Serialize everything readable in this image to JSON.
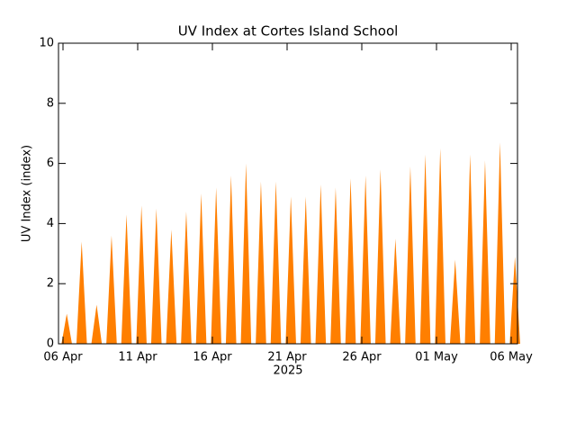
{
  "chart_data": {
    "type": "spike",
    "title": "UV Index at Cortes Island School",
    "y_label": "UV Index (index)",
    "x_label": "2025",
    "color": "#ff7f00",
    "x": [
      "2025-04-06",
      "2025-04-07",
      "2025-04-08",
      "2025-04-09",
      "2025-04-10",
      "2025-04-11",
      "2025-04-12",
      "2025-04-13",
      "2025-04-14",
      "2025-04-15",
      "2025-04-16",
      "2025-04-17",
      "2025-04-18",
      "2025-04-19",
      "2025-04-20",
      "2025-04-21",
      "2025-04-22",
      "2025-04-23",
      "2025-04-24",
      "2025-04-25",
      "2025-04-26",
      "2025-04-27",
      "2025-04-28",
      "2025-04-29",
      "2025-04-30",
      "2025-05-01",
      "2025-05-02",
      "2025-05-03",
      "2025-05-04",
      "2025-05-05",
      "2025-05-06"
    ],
    "values": [
      1.0,
      3.4,
      1.3,
      3.6,
      4.3,
      4.6,
      4.5,
      3.8,
      4.4,
      5.0,
      5.2,
      5.6,
      6.0,
      5.4,
      5.4,
      4.9,
      4.9,
      5.3,
      5.2,
      5.5,
      5.6,
      5.8,
      3.5,
      5.9,
      6.3,
      6.5,
      2.8,
      6.3,
      6.1,
      6.7,
      2.9
    ],
    "xlim": [
      "2025-04-06",
      "2025-05-06"
    ],
    "xticks": [
      {
        "value": "2025-04-06",
        "label": "06 Apr"
      },
      {
        "value": "2025-04-11",
        "label": "11 Apr"
      },
      {
        "value": "2025-04-16",
        "label": "16 Apr"
      },
      {
        "value": "2025-04-21",
        "label": "21 Apr"
      },
      {
        "value": "2025-04-26",
        "label": "26 Apr"
      },
      {
        "value": "2025-05-01",
        "label": "01 May"
      },
      {
        "value": "2025-05-06",
        "label": "06 May"
      }
    ],
    "ylim": [
      0,
      10
    ],
    "yticks": [
      0,
      2,
      4,
      6,
      8,
      10
    ]
  }
}
